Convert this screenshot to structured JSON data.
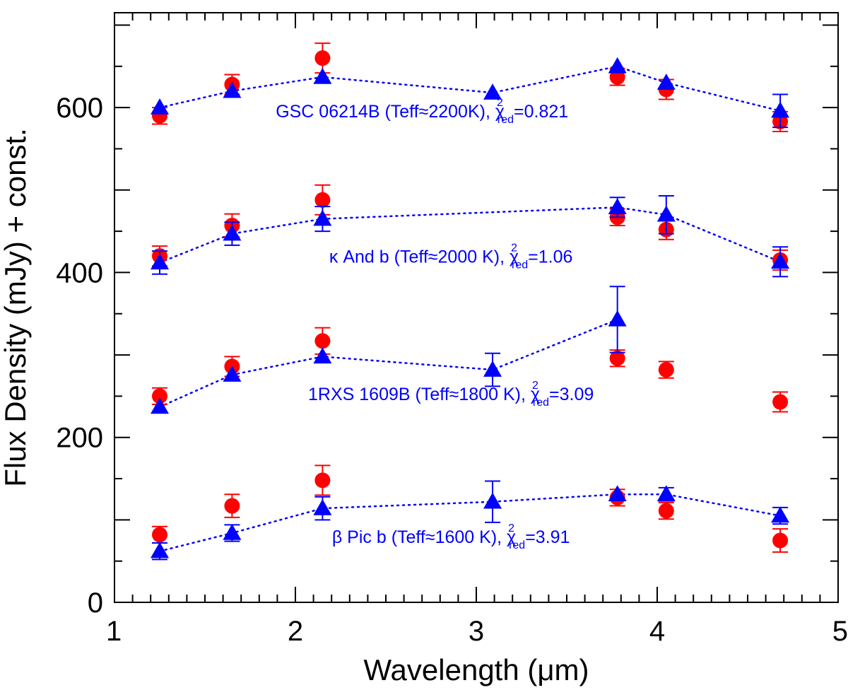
{
  "chart_data": {
    "type": "scatter",
    "xlabel": "Wavelength (μm)",
    "ylabel": "Flux Density (mJy) + const.",
    "xlim": [
      1,
      5
    ],
    "ylim": [
      0,
      715
    ],
    "x_ticks": [
      1,
      2,
      3,
      4,
      5
    ],
    "y_ticks": [
      0,
      200,
      400,
      600
    ],
    "x_tick_labels": [
      "1",
      "2",
      "3",
      "4",
      "5"
    ],
    "y_tick_labels": [
      "0",
      "200",
      "400",
      "600"
    ],
    "x_minor_step": 0.1,
    "y_minor_step": 50,
    "grid": false,
    "colors": {
      "observed": "#ff0000",
      "model": "#0000ff"
    },
    "groups": [
      {
        "name": "GSC 06214B",
        "label": {
          "name": "GSC 06214B (Teff≈2200K), ",
          "chi_symbol": "χ",
          "sup": "2",
          "sub": "red",
          "value": "=0.821"
        },
        "label_anchor": [
          2.7,
          588
        ],
        "observed": {
          "x": [
            1.25,
            1.65,
            2.15,
            3.78,
            4.05,
            4.68
          ],
          "y": [
            590,
            628,
            660,
            637,
            622,
            583
          ],
          "err": [
            10,
            12,
            18,
            10,
            12,
            12
          ]
        },
        "model": {
          "x": [
            1.25,
            1.65,
            2.15,
            3.09,
            3.78,
            4.05,
            4.68
          ],
          "y": [
            600,
            620,
            637,
            618,
            650,
            630,
            596
          ],
          "err": [
            0,
            0,
            0,
            0,
            0,
            0,
            20
          ]
        }
      },
      {
        "name": "κ And b",
        "label": {
          "name": "κ And b (Teff≈2000 K), ",
          "chi_symbol": "χ",
          "sup": "2",
          "sub": "red",
          "value": "=1.06"
        },
        "label_anchor": [
          2.86,
          412
        ],
        "observed": {
          "x": [
            1.25,
            1.65,
            2.15,
            3.78,
            4.05,
            4.68
          ],
          "y": [
            420,
            457,
            488,
            467,
            452,
            415
          ],
          "err": [
            12,
            14,
            18,
            10,
            12,
            12
          ]
        },
        "model": {
          "x": [
            1.25,
            1.65,
            2.15,
            3.78,
            4.05,
            4.68
          ],
          "y": [
            412,
            447,
            465,
            479,
            470,
            413
          ],
          "err": [
            14,
            14,
            15,
            12,
            23,
            18
          ]
        }
      },
      {
        "name": "1RXS 1609B",
        "label": {
          "name": "1RXS 1609B (Teff≈1800 K), ",
          "chi_symbol": "χ",
          "sup": "2",
          "sub": "red",
          "value": "=3.09"
        },
        "label_anchor": [
          2.86,
          245
        ],
        "observed": {
          "x": [
            1.25,
            1.65,
            2.15,
            3.78,
            4.05,
            4.68
          ],
          "y": [
            250,
            286,
            317,
            296,
            282,
            243
          ],
          "err": [
            10,
            12,
            16,
            10,
            10,
            12
          ]
        },
        "model": {
          "x": [
            1.25,
            1.65,
            2.15,
            3.09,
            3.78
          ],
          "y": [
            237,
            276,
            298,
            282,
            343
          ],
          "err": [
            0,
            0,
            0,
            20,
            40
          ]
        }
      },
      {
        "name": "β Pic b",
        "label": {
          "name": "β Pic b (Teff≈1600 K), ",
          "chi_symbol": "χ",
          "sup": "2",
          "sub": "red",
          "value": "=3.91"
        },
        "label_anchor": [
          2.86,
          72
        ],
        "observed": {
          "x": [
            1.25,
            1.65,
            2.15,
            3.78,
            4.05,
            4.68
          ],
          "y": [
            82,
            117,
            148,
            127,
            111,
            75
          ],
          "err": [
            10,
            14,
            18,
            10,
            10,
            14
          ]
        },
        "model": {
          "x": [
            1.25,
            1.65,
            2.15,
            3.09,
            3.78,
            4.05,
            4.68
          ],
          "y": [
            62,
            84,
            114,
            122,
            131,
            131,
            105
          ],
          "err": [
            10,
            10,
            14,
            25,
            0,
            8,
            10
          ]
        }
      }
    ]
  }
}
